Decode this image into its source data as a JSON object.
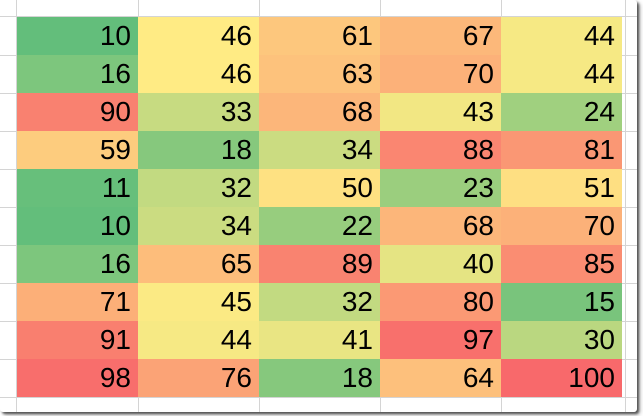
{
  "spreadsheet": {
    "description": "Excel worksheet region with a 3-color-scale conditional formatting heatmap",
    "columns": 5,
    "row_count": 10,
    "rows": [
      [
        10,
        46,
        61,
        67,
        44
      ],
      [
        16,
        46,
        63,
        70,
        44
      ],
      [
        90,
        33,
        68,
        43,
        24
      ],
      [
        59,
        18,
        34,
        88,
        81
      ],
      [
        11,
        32,
        50,
        23,
        51
      ],
      [
        10,
        34,
        22,
        68,
        70
      ],
      [
        16,
        65,
        89,
        40,
        85
      ],
      [
        71,
        45,
        32,
        80,
        15
      ],
      [
        91,
        44,
        41,
        97,
        30
      ],
      [
        98,
        76,
        18,
        64,
        100
      ]
    ],
    "color_scale": {
      "type": "3-color-scale",
      "min": {
        "value": 10,
        "color": "#63BE7B"
      },
      "mid": {
        "value": 46,
        "color": "#FFEB84"
      },
      "max": {
        "value": 100,
        "color": "#F8696B"
      }
    },
    "text_color": "#000000",
    "gridline_color": "#D4D4D4",
    "background_color": "#FFFFFF"
  }
}
